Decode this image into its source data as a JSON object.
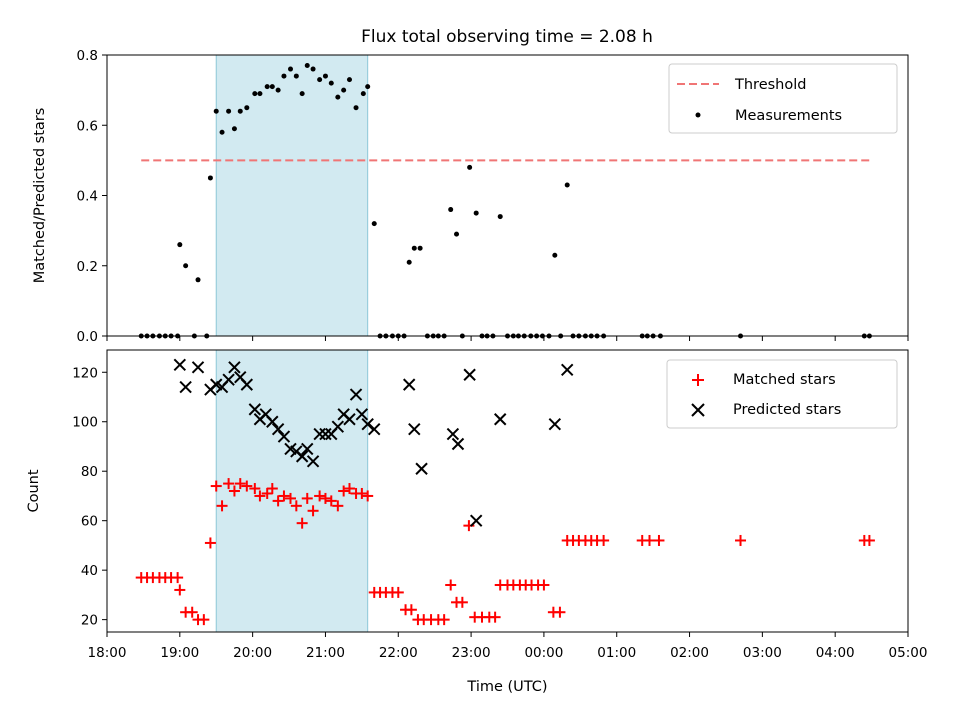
{
  "title": "Flux total observing time = 2.08 h",
  "colors": {
    "threshold": "#f07575",
    "measurement": "#000000",
    "matched": "#ff0000",
    "predicted": "#000000",
    "span_fill": "#add8e6"
  },
  "chart_data": [
    {
      "type": "scatter",
      "ylabel": "Matched/Predicted stars",
      "xlabel": "",
      "xlim": [
        18.0,
        29.0
      ],
      "ylim": [
        0.0,
        0.8
      ],
      "yticks": [
        0.0,
        0.2,
        0.4,
        0.6,
        0.8
      ],
      "ytick_labels": [
        "0.0",
        "0.2",
        "0.4",
        "0.6",
        "0.8"
      ],
      "highlight_span": [
        19.5,
        21.58
      ],
      "legend": {
        "position": "upper right",
        "entries": [
          "Threshold",
          "Measurements"
        ]
      },
      "threshold": {
        "name": "Threshold",
        "value": 0.5,
        "x_range": [
          18.47,
          28.47
        ],
        "style": "dashed"
      },
      "series": [
        {
          "name": "Measurements",
          "marker": "dot",
          "points": [
            [
              18.47,
              0
            ],
            [
              18.55,
              0
            ],
            [
              18.63,
              0
            ],
            [
              18.72,
              0
            ],
            [
              18.8,
              0
            ],
            [
              18.88,
              0
            ],
            [
              18.97,
              0
            ],
            [
              19.0,
              0.26
            ],
            [
              19.08,
              0.2
            ],
            [
              19.2,
              0
            ],
            [
              19.25,
              0.16
            ],
            [
              19.37,
              0
            ],
            [
              19.42,
              0.45
            ],
            [
              19.5,
              0.64
            ],
            [
              19.58,
              0.58
            ],
            [
              19.67,
              0.64
            ],
            [
              19.75,
              0.59
            ],
            [
              19.83,
              0.64
            ],
            [
              19.92,
              0.65
            ],
            [
              20.03,
              0.69
            ],
            [
              20.1,
              0.69
            ],
            [
              20.2,
              0.71
            ],
            [
              20.27,
              0.71
            ],
            [
              20.35,
              0.7
            ],
            [
              20.43,
              0.74
            ],
            [
              20.52,
              0.76
            ],
            [
              20.6,
              0.74
            ],
            [
              20.68,
              0.69
            ],
            [
              20.75,
              0.77
            ],
            [
              20.83,
              0.76
            ],
            [
              20.92,
              0.73
            ],
            [
              21.0,
              0.74
            ],
            [
              21.08,
              0.72
            ],
            [
              21.17,
              0.68
            ],
            [
              21.25,
              0.7
            ],
            [
              21.33,
              0.73
            ],
            [
              21.42,
              0.65
            ],
            [
              21.52,
              0.69
            ],
            [
              21.58,
              0.71
            ],
            [
              21.67,
              0.32
            ],
            [
              21.75,
              0
            ],
            [
              21.83,
              0
            ],
            [
              21.92,
              0
            ],
            [
              22.0,
              0
            ],
            [
              22.08,
              0
            ],
            [
              22.15,
              0.21
            ],
            [
              22.22,
              0.25
            ],
            [
              22.3,
              0.25
            ],
            [
              22.4,
              0
            ],
            [
              22.48,
              0
            ],
            [
              22.55,
              0
            ],
            [
              22.63,
              0
            ],
            [
              22.72,
              0.36
            ],
            [
              22.8,
              0.29
            ],
            [
              22.88,
              0
            ],
            [
              22.98,
              0.48
            ],
            [
              23.07,
              0.35
            ],
            [
              23.15,
              0
            ],
            [
              23.22,
              0
            ],
            [
              23.3,
              0
            ],
            [
              23.4,
              0.34
            ],
            [
              23.5,
              0
            ],
            [
              23.58,
              0
            ],
            [
              23.65,
              0
            ],
            [
              23.73,
              0
            ],
            [
              23.82,
              0
            ],
            [
              23.9,
              0
            ],
            [
              23.98,
              0
            ],
            [
              24.07,
              0
            ],
            [
              24.15,
              0.23
            ],
            [
              24.23,
              0
            ],
            [
              24.32,
              0.43
            ],
            [
              24.4,
              0
            ],
            [
              24.48,
              0
            ],
            [
              24.57,
              0
            ],
            [
              24.65,
              0
            ],
            [
              24.73,
              0
            ],
            [
              24.82,
              0
            ],
            [
              25.35,
              0
            ],
            [
              25.42,
              0
            ],
            [
              25.5,
              0
            ],
            [
              25.6,
              0
            ],
            [
              26.7,
              0
            ],
            [
              28.4,
              0
            ],
            [
              28.47,
              0
            ]
          ]
        }
      ]
    },
    {
      "type": "scatter",
      "ylabel": "Count",
      "xlabel": "Time (UTC)",
      "xlim": [
        18.0,
        29.0
      ],
      "ylim": [
        15,
        129
      ],
      "yticks": [
        20,
        40,
        60,
        80,
        100,
        120
      ],
      "ytick_labels": [
        "20",
        "40",
        "60",
        "80",
        "100",
        "120"
      ],
      "xticks": [
        18,
        19,
        20,
        21,
        22,
        23,
        24,
        25,
        26,
        27,
        28,
        29
      ],
      "xtick_labels": [
        "18:00",
        "19:00",
        "20:00",
        "21:00",
        "22:00",
        "23:00",
        "00:00",
        "01:00",
        "02:00",
        "03:00",
        "04:00",
        "05:00"
      ],
      "highlight_span": [
        19.5,
        21.58
      ],
      "legend": {
        "position": "upper right",
        "entries": [
          "Matched stars",
          "Predicted stars"
        ]
      },
      "series": [
        {
          "name": "Matched stars",
          "marker": "plus",
          "points": [
            [
              18.47,
              37
            ],
            [
              18.55,
              37
            ],
            [
              18.63,
              37
            ],
            [
              18.72,
              37
            ],
            [
              18.8,
              37
            ],
            [
              18.88,
              37
            ],
            [
              18.97,
              37
            ],
            [
              19.0,
              32
            ],
            [
              19.08,
              23
            ],
            [
              19.17,
              23
            ],
            [
              19.25,
              20
            ],
            [
              19.33,
              20
            ],
            [
              19.42,
              51
            ],
            [
              19.5,
              74
            ],
            [
              19.58,
              66
            ],
            [
              19.67,
              75
            ],
            [
              19.75,
              72
            ],
            [
              19.83,
              75
            ],
            [
              19.92,
              74
            ],
            [
              20.03,
              73
            ],
            [
              20.1,
              70
            ],
            [
              20.2,
              71
            ],
            [
              20.27,
              73
            ],
            [
              20.35,
              68
            ],
            [
              20.43,
              70
            ],
            [
              20.52,
              69
            ],
            [
              20.6,
              66
            ],
            [
              20.68,
              59
            ],
            [
              20.75,
              69
            ],
            [
              20.83,
              64
            ],
            [
              20.92,
              70
            ],
            [
              21.0,
              69
            ],
            [
              21.08,
              68
            ],
            [
              21.17,
              66
            ],
            [
              21.25,
              72
            ],
            [
              21.33,
              73
            ],
            [
              21.42,
              71
            ],
            [
              21.5,
              71
            ],
            [
              21.58,
              70
            ],
            [
              21.67,
              31
            ],
            [
              21.75,
              31
            ],
            [
              21.83,
              31
            ],
            [
              21.92,
              31
            ],
            [
              22.0,
              31
            ],
            [
              22.1,
              24
            ],
            [
              22.18,
              24
            ],
            [
              22.27,
              20
            ],
            [
              22.35,
              20
            ],
            [
              22.45,
              20
            ],
            [
              22.55,
              20
            ],
            [
              22.63,
              20
            ],
            [
              22.72,
              34
            ],
            [
              22.8,
              27
            ],
            [
              22.88,
              27
            ],
            [
              22.97,
              58
            ],
            [
              23.05,
              21
            ],
            [
              23.15,
              21
            ],
            [
              23.25,
              21
            ],
            [
              23.33,
              21
            ],
            [
              23.4,
              34
            ],
            [
              23.5,
              34
            ],
            [
              23.58,
              34
            ],
            [
              23.67,
              34
            ],
            [
              23.75,
              34
            ],
            [
              23.83,
              34
            ],
            [
              23.92,
              34
            ],
            [
              24.0,
              34
            ],
            [
              24.13,
              23
            ],
            [
              24.22,
              23
            ],
            [
              24.32,
              52
            ],
            [
              24.4,
              52
            ],
            [
              24.48,
              52
            ],
            [
              24.57,
              52
            ],
            [
              24.65,
              52
            ],
            [
              24.73,
              52
            ],
            [
              24.82,
              52
            ],
            [
              25.35,
              52
            ],
            [
              25.45,
              52
            ],
            [
              25.58,
              52
            ],
            [
              26.7,
              52
            ],
            [
              28.4,
              52
            ],
            [
              28.47,
              52
            ]
          ]
        },
        {
          "name": "Predicted stars",
          "marker": "x",
          "points": [
            [
              19.0,
              123
            ],
            [
              19.08,
              114
            ],
            [
              19.25,
              122
            ],
            [
              19.42,
              113
            ],
            [
              19.5,
              115
            ],
            [
              19.58,
              114
            ],
            [
              19.67,
              117
            ],
            [
              19.75,
              122
            ],
            [
              19.83,
              118
            ],
            [
              19.92,
              115
            ],
            [
              20.03,
              105
            ],
            [
              20.1,
              101
            ],
            [
              20.18,
              103
            ],
            [
              20.27,
              100
            ],
            [
              20.35,
              97
            ],
            [
              20.43,
              94
            ],
            [
              20.52,
              89
            ],
            [
              20.6,
              88
            ],
            [
              20.68,
              86
            ],
            [
              20.75,
              89
            ],
            [
              20.83,
              84
            ],
            [
              20.92,
              95
            ],
            [
              21.0,
              95
            ],
            [
              21.08,
              95
            ],
            [
              21.17,
              98
            ],
            [
              21.25,
              103
            ],
            [
              21.33,
              101
            ],
            [
              21.42,
              111
            ],
            [
              21.5,
              103
            ],
            [
              21.58,
              99
            ],
            [
              21.67,
              97
            ],
            [
              22.15,
              115
            ],
            [
              22.22,
              97
            ],
            [
              22.32,
              81
            ],
            [
              22.75,
              95
            ],
            [
              22.82,
              91
            ],
            [
              22.98,
              119
            ],
            [
              23.07,
              60
            ],
            [
              23.4,
              101
            ],
            [
              24.15,
              99
            ],
            [
              24.32,
              121
            ]
          ]
        }
      ]
    }
  ]
}
